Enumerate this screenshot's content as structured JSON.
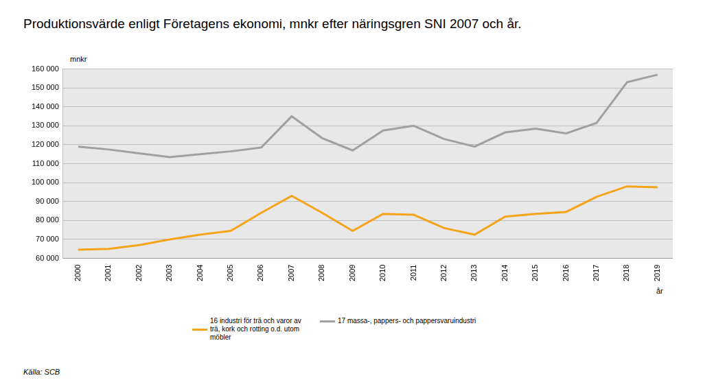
{
  "chart_data": {
    "type": "line",
    "title": "Produktionsvärde enligt Företagens ekonomi, mnkr efter näringsgren SNI 2007 och år.",
    "y_label": "mnkr",
    "x_label": "år",
    "source": "Källa: SCB",
    "categories": [
      "2000",
      "2001",
      "2002",
      "2003",
      "2004",
      "2005",
      "2006",
      "2007",
      "2008",
      "2009",
      "2010",
      "2011",
      "2012",
      "2013",
      "2014",
      "2015",
      "2016",
      "2017",
      "2018",
      "2019"
    ],
    "series": [
      {
        "name": "16 industri för trä och varor av trä, kork och rotting o.d. utom möbler",
        "color": "#f5a318",
        "values": [
          64500,
          65000,
          67000,
          70000,
          72500,
          74500,
          84000,
          93000,
          84000,
          74500,
          83500,
          83000,
          76000,
          72500,
          82000,
          83500,
          84500,
          92500,
          98000,
          97500
        ]
      },
      {
        "name": "17 massa-, pappers- och pappersvaruindustri",
        "color": "#a0a0a0",
        "values": [
          119000,
          117500,
          115500,
          113500,
          115000,
          116500,
          118500,
          135000,
          123500,
          117000,
          127500,
          130000,
          123000,
          119000,
          126500,
          128500,
          126000,
          131500,
          153000,
          157000
        ]
      }
    ],
    "ylim": [
      60000,
      160000
    ],
    "yticks": [
      {
        "value": 60000,
        "label": "60 000"
      },
      {
        "value": 70000,
        "label": "70 000"
      },
      {
        "value": 80000,
        "label": "80 000"
      },
      {
        "value": 90000,
        "label": "90 000"
      },
      {
        "value": 100000,
        "label": "100 000"
      },
      {
        "value": 110000,
        "label": "110 000"
      },
      {
        "value": 120000,
        "label": "120 000"
      },
      {
        "value": 130000,
        "label": "130 000"
      },
      {
        "value": 140000,
        "label": "140 000"
      },
      {
        "value": 150000,
        "label": "150 000"
      },
      {
        "value": 160000,
        "label": "160 000"
      }
    ],
    "grid": true,
    "legend": "bottom"
  }
}
